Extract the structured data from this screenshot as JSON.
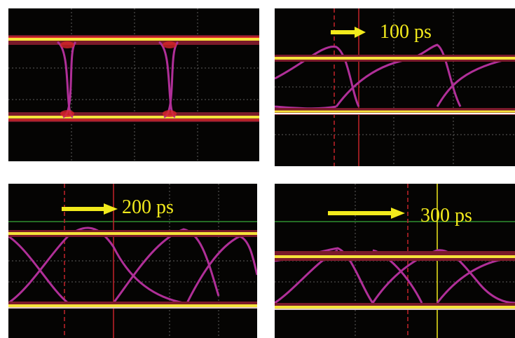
{
  "colors": {
    "screen": "#050403",
    "trace_yellow": "#f5e33a",
    "trace_red": "#d8262a",
    "trace_magenta": "#b02f98",
    "grid": "#6b6b6b",
    "marker_red": "#c4232b",
    "marker_green": "#2f8f2f",
    "label": "#f2ea1c"
  },
  "panels": [
    {
      "id": "top-left",
      "delay_label": ""
    },
    {
      "id": "top-right",
      "delay_label": "100 ps"
    },
    {
      "id": "bottom-left",
      "delay_label": "200 ps"
    },
    {
      "id": "bottom-right",
      "delay_label": "300 ps"
    }
  ]
}
